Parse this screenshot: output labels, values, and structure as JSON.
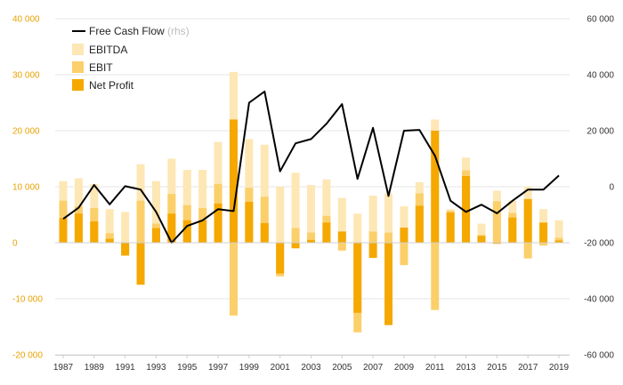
{
  "colors": {
    "ebitda": "#fde7b5",
    "ebit": "#fbcf6a",
    "net_profit": "#f5a800",
    "fcf": "#000000",
    "grid": "#e6e6e6",
    "left_axis": "#e8a200",
    "right_axis": "#333333"
  },
  "legend": {
    "fcf": "Free Cash Flow",
    "fcf_suffix": "(rhs)",
    "ebitda": "EBITDA",
    "ebit": "EBIT",
    "net_profit": "Net Profit"
  },
  "chart_data": {
    "type": "bar",
    "title": "",
    "xlabel": "",
    "ylabel": "",
    "categories": [
      1987,
      1988,
      1989,
      1990,
      1991,
      1992,
      1993,
      1994,
      1995,
      1996,
      1997,
      1998,
      1999,
      2000,
      2001,
      2002,
      2003,
      2004,
      2005,
      2006,
      2007,
      2008,
      2009,
      2010,
      2011,
      2012,
      2013,
      2014,
      2015,
      2016,
      2017,
      2018,
      2019
    ],
    "x_tick_labels": [
      "1987",
      "1989",
      "1991",
      "1993",
      "1995",
      "1997",
      "1999",
      "2001",
      "2003",
      "2005",
      "2007",
      "2009",
      "2011",
      "2013",
      "2015",
      "2017",
      "2019"
    ],
    "ylim": [
      -20000,
      40000
    ],
    "y2lim": [
      -60000,
      60000
    ],
    "y_tick_labels": [
      "40 000",
      "30 000",
      "20 000",
      "10 000",
      "0",
      "-10 000",
      "-20 000"
    ],
    "y2_tick_labels": [
      "60 000",
      "40 000",
      "20 000",
      "0",
      "-20 000",
      "-40 000",
      "-60 000"
    ],
    "series": [
      {
        "name": "EBITDA",
        "kind": "bar",
        "axis": "left",
        "values": [
          11000,
          11500,
          10500,
          6000,
          5500,
          14000,
          11000,
          15000,
          13000,
          13000,
          18000,
          30500,
          18500,
          17500,
          10000,
          12500,
          10300,
          11300,
          8000,
          5200,
          8400,
          8800,
          6500,
          10800,
          22000,
          6000,
          15200,
          3400,
          9300,
          7500,
          10000,
          6000,
          4000
        ]
      },
      {
        "name": "EBIT",
        "kind": "bar",
        "axis": "left",
        "values": [
          7500,
          6500,
          6200,
          1700,
          -1800,
          7500,
          3400,
          8700,
          6700,
          6200,
          10500,
          -13000,
          9800,
          8200,
          -6000,
          2600,
          1800,
          4800,
          -1400,
          -16000,
          2000,
          1800,
          -4000,
          8800,
          -12000,
          5700,
          12900,
          1400,
          7400,
          5300,
          -2800,
          -500,
          900
        ]
      },
      {
        "name": "Net Profit",
        "kind": "bar",
        "axis": "left",
        "values": [
          4400,
          5200,
          3800,
          700,
          -2300,
          -7500,
          2600,
          5200,
          4000,
          4000,
          7000,
          22000,
          7300,
          3500,
          -5500,
          -1000,
          500,
          3600,
          2000,
          -12500,
          -2700,
          -14700,
          2700,
          6600,
          20000,
          5400,
          11900,
          1200,
          -200,
          4500,
          7800,
          3600,
          400
        ]
      },
      {
        "name": "Free Cash Flow",
        "kind": "line",
        "axis": "right",
        "values": [
          -11500,
          -7500,
          600,
          -6300,
          200,
          -1000,
          -9000,
          -20000,
          -14000,
          -12000,
          -8000,
          -8700,
          30000,
          34000,
          5500,
          15500,
          17000,
          22500,
          29500,
          2800,
          21000,
          -3300,
          20000,
          20300,
          11000,
          -5000,
          -9000,
          -6400,
          -9500,
          -5000,
          -1000,
          -1000,
          4000
        ]
      }
    ]
  }
}
